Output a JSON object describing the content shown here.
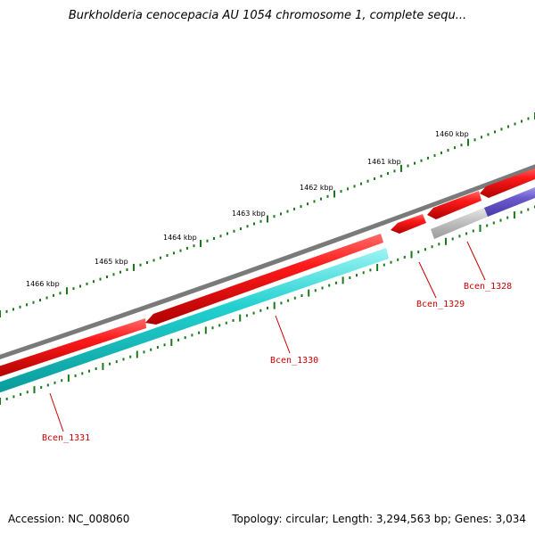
{
  "title": "Burkholderia cenocepacia AU 1054 chromosome 1, complete sequ...",
  "footer": {
    "accession_label": "Accession:",
    "accession": "NC_008060",
    "topology": "Topology: circular; Length: 3,294,563 bp; Genes: 3,034"
  },
  "ruler": {
    "unit": "kbp",
    "labels": [
      "1460 kbp",
      "1461 kbp",
      "1462 kbp",
      "1463 kbp",
      "1464 kbp",
      "1465 kbp",
      "1466 kbp"
    ]
  },
  "genes": [
    {
      "name": "Bcen_1328",
      "strand": "forward",
      "color": "#6a5acd"
    },
    {
      "name": "Bcen_1329",
      "strand": "reverse",
      "color": "#e00000"
    },
    {
      "name": "Bcen_1330",
      "strand": "reverse",
      "color": "#1ec8c8"
    },
    {
      "name": "Bcen_1331",
      "strand": "reverse",
      "color": "#1ec8c8"
    }
  ],
  "colors": {
    "backbone": "#7a7a7a",
    "cds_red": "#e00000",
    "cds_cyan": "#20c8c8",
    "cds_purple": "#6a5acd",
    "cds_gray": "#b8b8b8",
    "tick_green": "#1a7a1a",
    "label_red": "#cc0000"
  }
}
